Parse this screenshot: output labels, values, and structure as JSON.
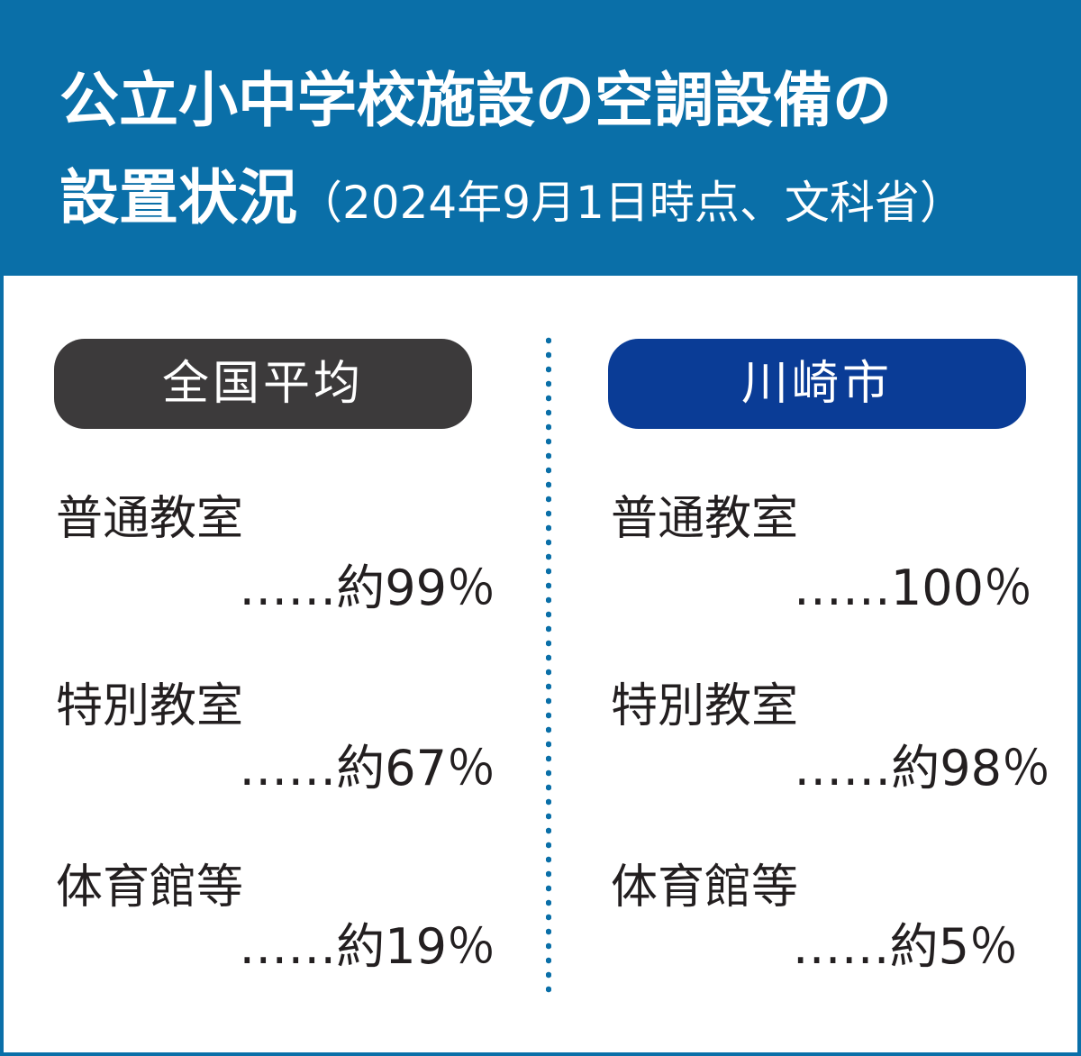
{
  "colors": {
    "header_bg": "#0a6fa8",
    "national_pill": "#3c3a3b",
    "kawasaki_pill": "#0a3c96",
    "text": "#231f20"
  },
  "header": {
    "title_line1": "公立小中学校施設の空調設備の",
    "title_line2_main": "設置状況",
    "title_line2_sub": "（2024年9月1日時点、文科省）"
  },
  "chart_data": {
    "type": "table",
    "title": "公立小中学校施設の空調設備の設置状況（2024年9月1日時点、文科省）",
    "columns": [
      {
        "name": "全国平均",
        "rows": [
          {
            "category": "普通教室",
            "value_text": "……約99％",
            "value": 99
          },
          {
            "category": "特別教室",
            "value_text": "……約67％",
            "value": 67
          },
          {
            "category": "体育館等",
            "value_text": "……約19％",
            "value": 19
          }
        ]
      },
      {
        "name": "川崎市",
        "rows": [
          {
            "category": "普通教室",
            "value_text": "……100％",
            "value": 100
          },
          {
            "category": "特別教室",
            "value_text": "……約98％",
            "value": 98
          },
          {
            "category": "体育館等",
            "value_text": "……約5％",
            "value": 5
          }
        ]
      }
    ]
  }
}
